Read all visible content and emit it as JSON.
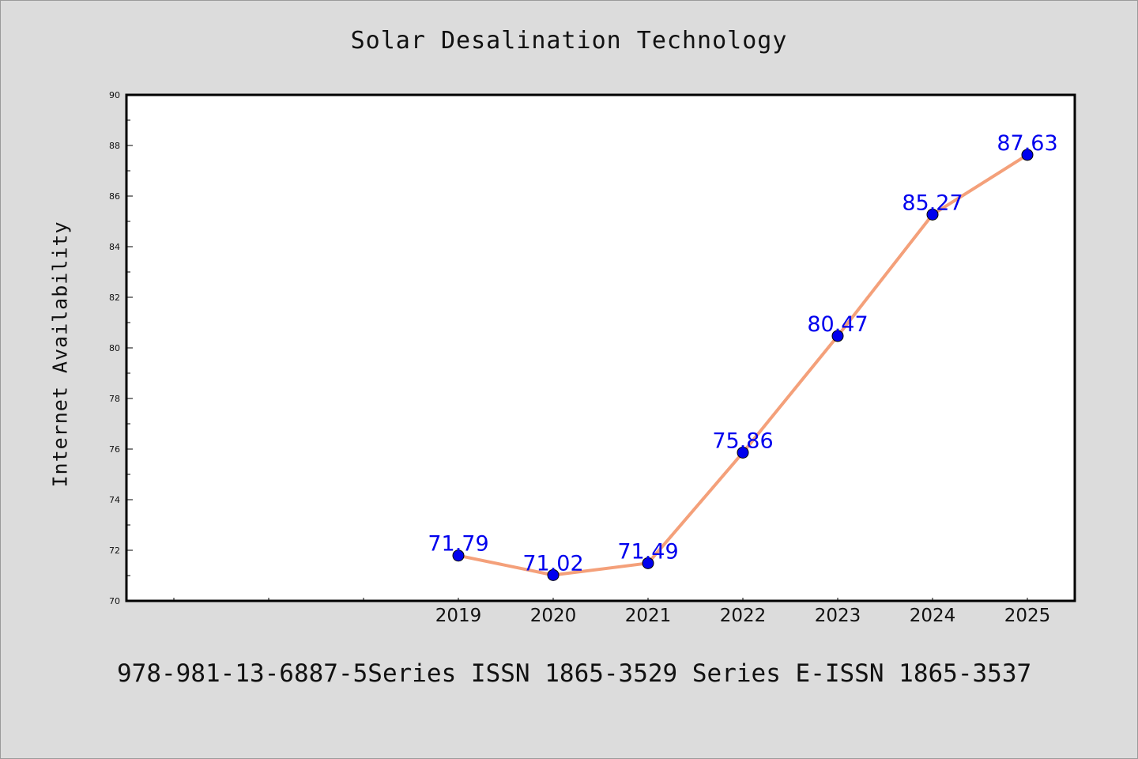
{
  "footer": {
    "text": "978-981-13-6887-5Series ISSN 1865-3529 Series E-ISSN 1865-3537"
  },
  "chart_data": {
    "type": "line",
    "title": "Solar Desalination Technology",
    "xlabel": "",
    "ylabel": "Internet Availability",
    "categories": [
      "2019",
      "2020",
      "2021",
      "2022",
      "2023",
      "2024",
      "2025"
    ],
    "series": [
      {
        "values": [
          71.79,
          71.02,
          71.49,
          75.86,
          80.47,
          85.27,
          87.63
        ],
        "labels": [
          "71.79",
          "71.02",
          "71.49",
          "75.86",
          "80.47",
          "85.27",
          "87.63"
        ],
        "line_color": "#f4a07a",
        "marker_color": "#0000ee",
        "label_color": "#0000ee"
      }
    ],
    "ylim": [
      70,
      90
    ],
    "yticks": [
      "70",
      "72",
      "74",
      "76",
      "78",
      "80",
      "82",
      "84",
      "86",
      "88",
      "90"
    ],
    "legend": "none",
    "grid": false
  }
}
